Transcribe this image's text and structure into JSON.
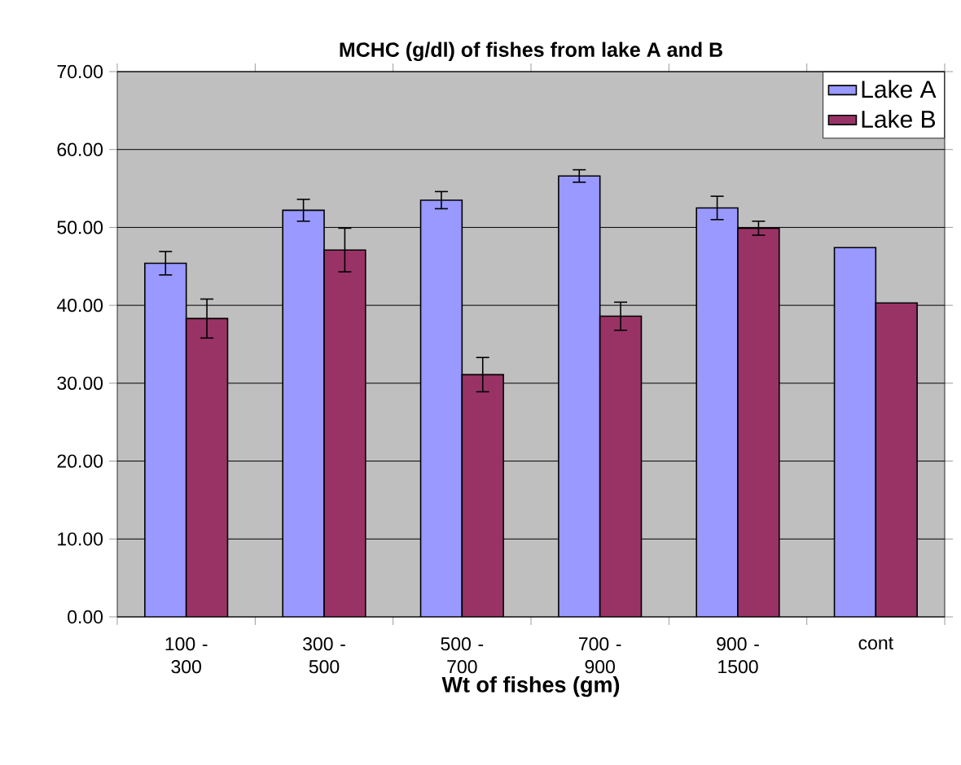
{
  "chart_data": {
    "type": "bar",
    "title": "MCHC (g/dl) of fishes from lake A and B",
    "xlabel": "Wt of fishes (gm)",
    "categories": [
      "100 - 300",
      "300 - 500",
      "500 - 700",
      "700 - 900",
      "900 - 1500",
      "cont"
    ],
    "series": [
      {
        "name": "Lake A",
        "color": "#9999ff",
        "values": [
          45.4,
          52.2,
          53.5,
          56.6,
          52.5,
          47.4
        ],
        "errors": [
          1.5,
          1.4,
          1.1,
          0.8,
          1.5,
          null
        ]
      },
      {
        "name": "Lake B",
        "color": "#993366",
        "values": [
          38.3,
          47.1,
          31.1,
          38.6,
          49.9,
          40.3
        ],
        "errors": [
          2.5,
          2.8,
          2.2,
          1.8,
          0.9,
          null
        ]
      }
    ],
    "ylim": [
      0,
      70
    ],
    "yticks": [
      {
        "value": 0,
        "label": "0.00"
      },
      {
        "value": 10,
        "label": "10.00"
      },
      {
        "value": 20,
        "label": "20.00"
      },
      {
        "value": 30,
        "label": "30.00"
      },
      {
        "value": 40,
        "label": "40.00"
      },
      {
        "value": 50,
        "label": "50.00"
      },
      {
        "value": 60,
        "label": "60.00"
      },
      {
        "value": 70,
        "label": "70.00"
      }
    ],
    "grid": "y",
    "legend": "top right"
  }
}
